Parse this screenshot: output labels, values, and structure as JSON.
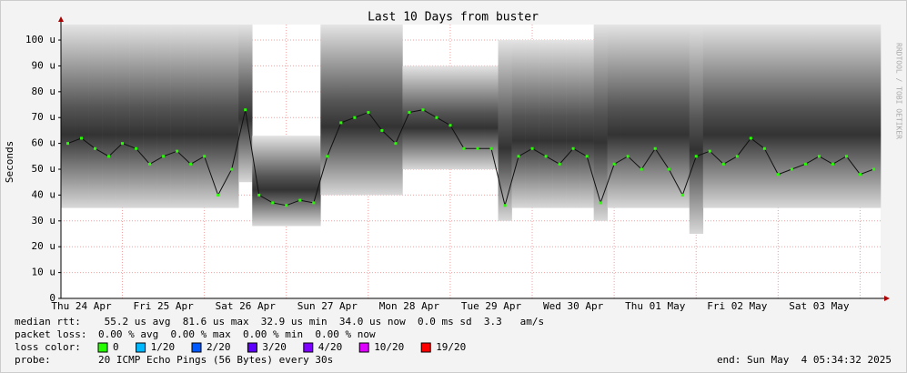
{
  "chart_data": {
    "type": "line",
    "title": "Last 10 Days from buster",
    "ylabel": "Seconds",
    "side_note": "RRDTOOL / TOBI OETIKER",
    "categories": [
      null,
      "Thu 24 Apr",
      null,
      null,
      null,
      null,
      null,
      "Fri 25 Apr",
      null,
      null,
      null,
      null,
      null,
      "Sat 26 Apr",
      null,
      null,
      null,
      null,
      null,
      "Sun 27 Apr",
      null,
      null,
      null,
      null,
      null,
      "Mon 28 Apr",
      null,
      null,
      null,
      null,
      null,
      "Tue 29 Apr",
      null,
      null,
      null,
      null,
      null,
      "Wed 30 Apr",
      null,
      null,
      null,
      null,
      null,
      "Thu 01 May",
      null,
      null,
      null,
      null,
      null,
      "Fri 02 May",
      null,
      null,
      null,
      null,
      null,
      "Sat 03 May",
      null,
      null,
      null,
      null
    ],
    "values": [
      60,
      62,
      58,
      55,
      60,
      58,
      52,
      55,
      57,
      52,
      55,
      40,
      50,
      73,
      40,
      37,
      36,
      38,
      37,
      55,
      68,
      70,
      72,
      65,
      60,
      72,
      73,
      70,
      67,
      58,
      58,
      58,
      36,
      55,
      58,
      55,
      52,
      58,
      55,
      37,
      52,
      55,
      50,
      58,
      50,
      40,
      55,
      57,
      52,
      55,
      62,
      58,
      48,
      50,
      52,
      55,
      52,
      55,
      48,
      50
    ],
    "low": [
      35,
      35,
      35,
      35,
      35,
      35,
      35,
      35,
      35,
      35,
      35,
      35,
      35,
      45,
      28,
      28,
      28,
      28,
      28,
      40,
      40,
      40,
      40,
      40,
      40,
      50,
      50,
      50,
      50,
      50,
      50,
      50,
      30,
      35,
      35,
      35,
      35,
      35,
      35,
      30,
      35,
      35,
      35,
      35,
      35,
      35,
      25,
      35,
      35,
      35,
      35,
      35,
      35,
      35,
      35,
      35,
      35,
      35,
      35,
      35
    ],
    "high": [
      106,
      106,
      106,
      106,
      106,
      106,
      106,
      106,
      106,
      106,
      106,
      106,
      106,
      106,
      63,
      63,
      63,
      63,
      63,
      106,
      106,
      106,
      106,
      106,
      106,
      90,
      90,
      90,
      90,
      90,
      90,
      90,
      100,
      100,
      100,
      100,
      100,
      100,
      100,
      106,
      106,
      106,
      106,
      106,
      106,
      106,
      106,
      106,
      106,
      106,
      106,
      106,
      106,
      106,
      106,
      106,
      106,
      106,
      106,
      106
    ],
    "color": "#26ff00",
    "ylim": [
      0,
      106
    ],
    "yticks": [
      0,
      {
        "value": 10,
        "label": "10 u"
      },
      {
        "value": 20,
        "label": "20 u"
      },
      {
        "value": 30,
        "label": "30 u"
      },
      {
        "value": 40,
        "label": "40 u"
      },
      {
        "value": 50,
        "label": "50 u"
      },
      {
        "value": 60,
        "label": "60 u"
      },
      {
        "value": 70,
        "label": "70 u"
      },
      {
        "value": 80,
        "label": "80 u"
      },
      {
        "value": 90,
        "label": "90 u"
      },
      {
        "value": 100,
        "label": "100 u"
      }
    ],
    "grid": true,
    "footer": {
      "rows": [
        {
          "label": "median rtt:",
          "text": " 55.2 us avg  81.6 us max  32.9 us min  34.0 us now  0.0 ms sd  3.3   am/s"
        },
        {
          "label": "packet loss:",
          "text": "0.00 % avg  0.00 % max  0.00 % min  0.00 % now"
        },
        {
          "label": "probe:",
          "text": "20 ICMP Echo Pings (56 Bytes) every 30s"
        }
      ],
      "loss_label": "loss color:",
      "loss_colors": [
        {
          "label": "0",
          "color": "#26ff00"
        },
        {
          "label": "1/20",
          "color": "#00b8ff"
        },
        {
          "label": "2/20",
          "color": "#0059ff"
        },
        {
          "label": "3/20",
          "color": "#5e00ff"
        },
        {
          "label": "4/20",
          "color": "#7e00ff"
        },
        {
          "label": "10/20",
          "color": "#dd00ff"
        },
        {
          "label": "19/20",
          "color": "#ff0000"
        }
      ],
      "end": "end: Sun May  4 05:34:32 2025"
    }
  }
}
